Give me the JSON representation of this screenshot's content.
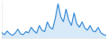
{
  "chart_data": {
    "type": "area",
    "color": "#3d8fd6",
    "tick_labels": false,
    "grid": false,
    "categories": [
      null,
      null,
      null,
      null,
      null,
      null,
      null,
      null,
      null,
      null,
      null,
      null,
      null,
      null,
      null,
      null,
      null,
      null,
      null,
      null,
      null,
      null,
      null,
      null,
      null,
      null,
      null,
      null,
      null,
      null,
      null,
      null,
      null,
      null,
      null,
      null,
      null,
      null,
      null,
      null
    ],
    "values": [
      15,
      10,
      20,
      12,
      8,
      14,
      25,
      12,
      10,
      18,
      15,
      30,
      20,
      14,
      35,
      22,
      18,
      45,
      30,
      25,
      55,
      95,
      60,
      45,
      80,
      50,
      35,
      70,
      40,
      30,
      45,
      28,
      22,
      35,
      20,
      18,
      30,
      15,
      10,
      8
    ],
    "ylim": [
      0,
      100
    ]
  }
}
